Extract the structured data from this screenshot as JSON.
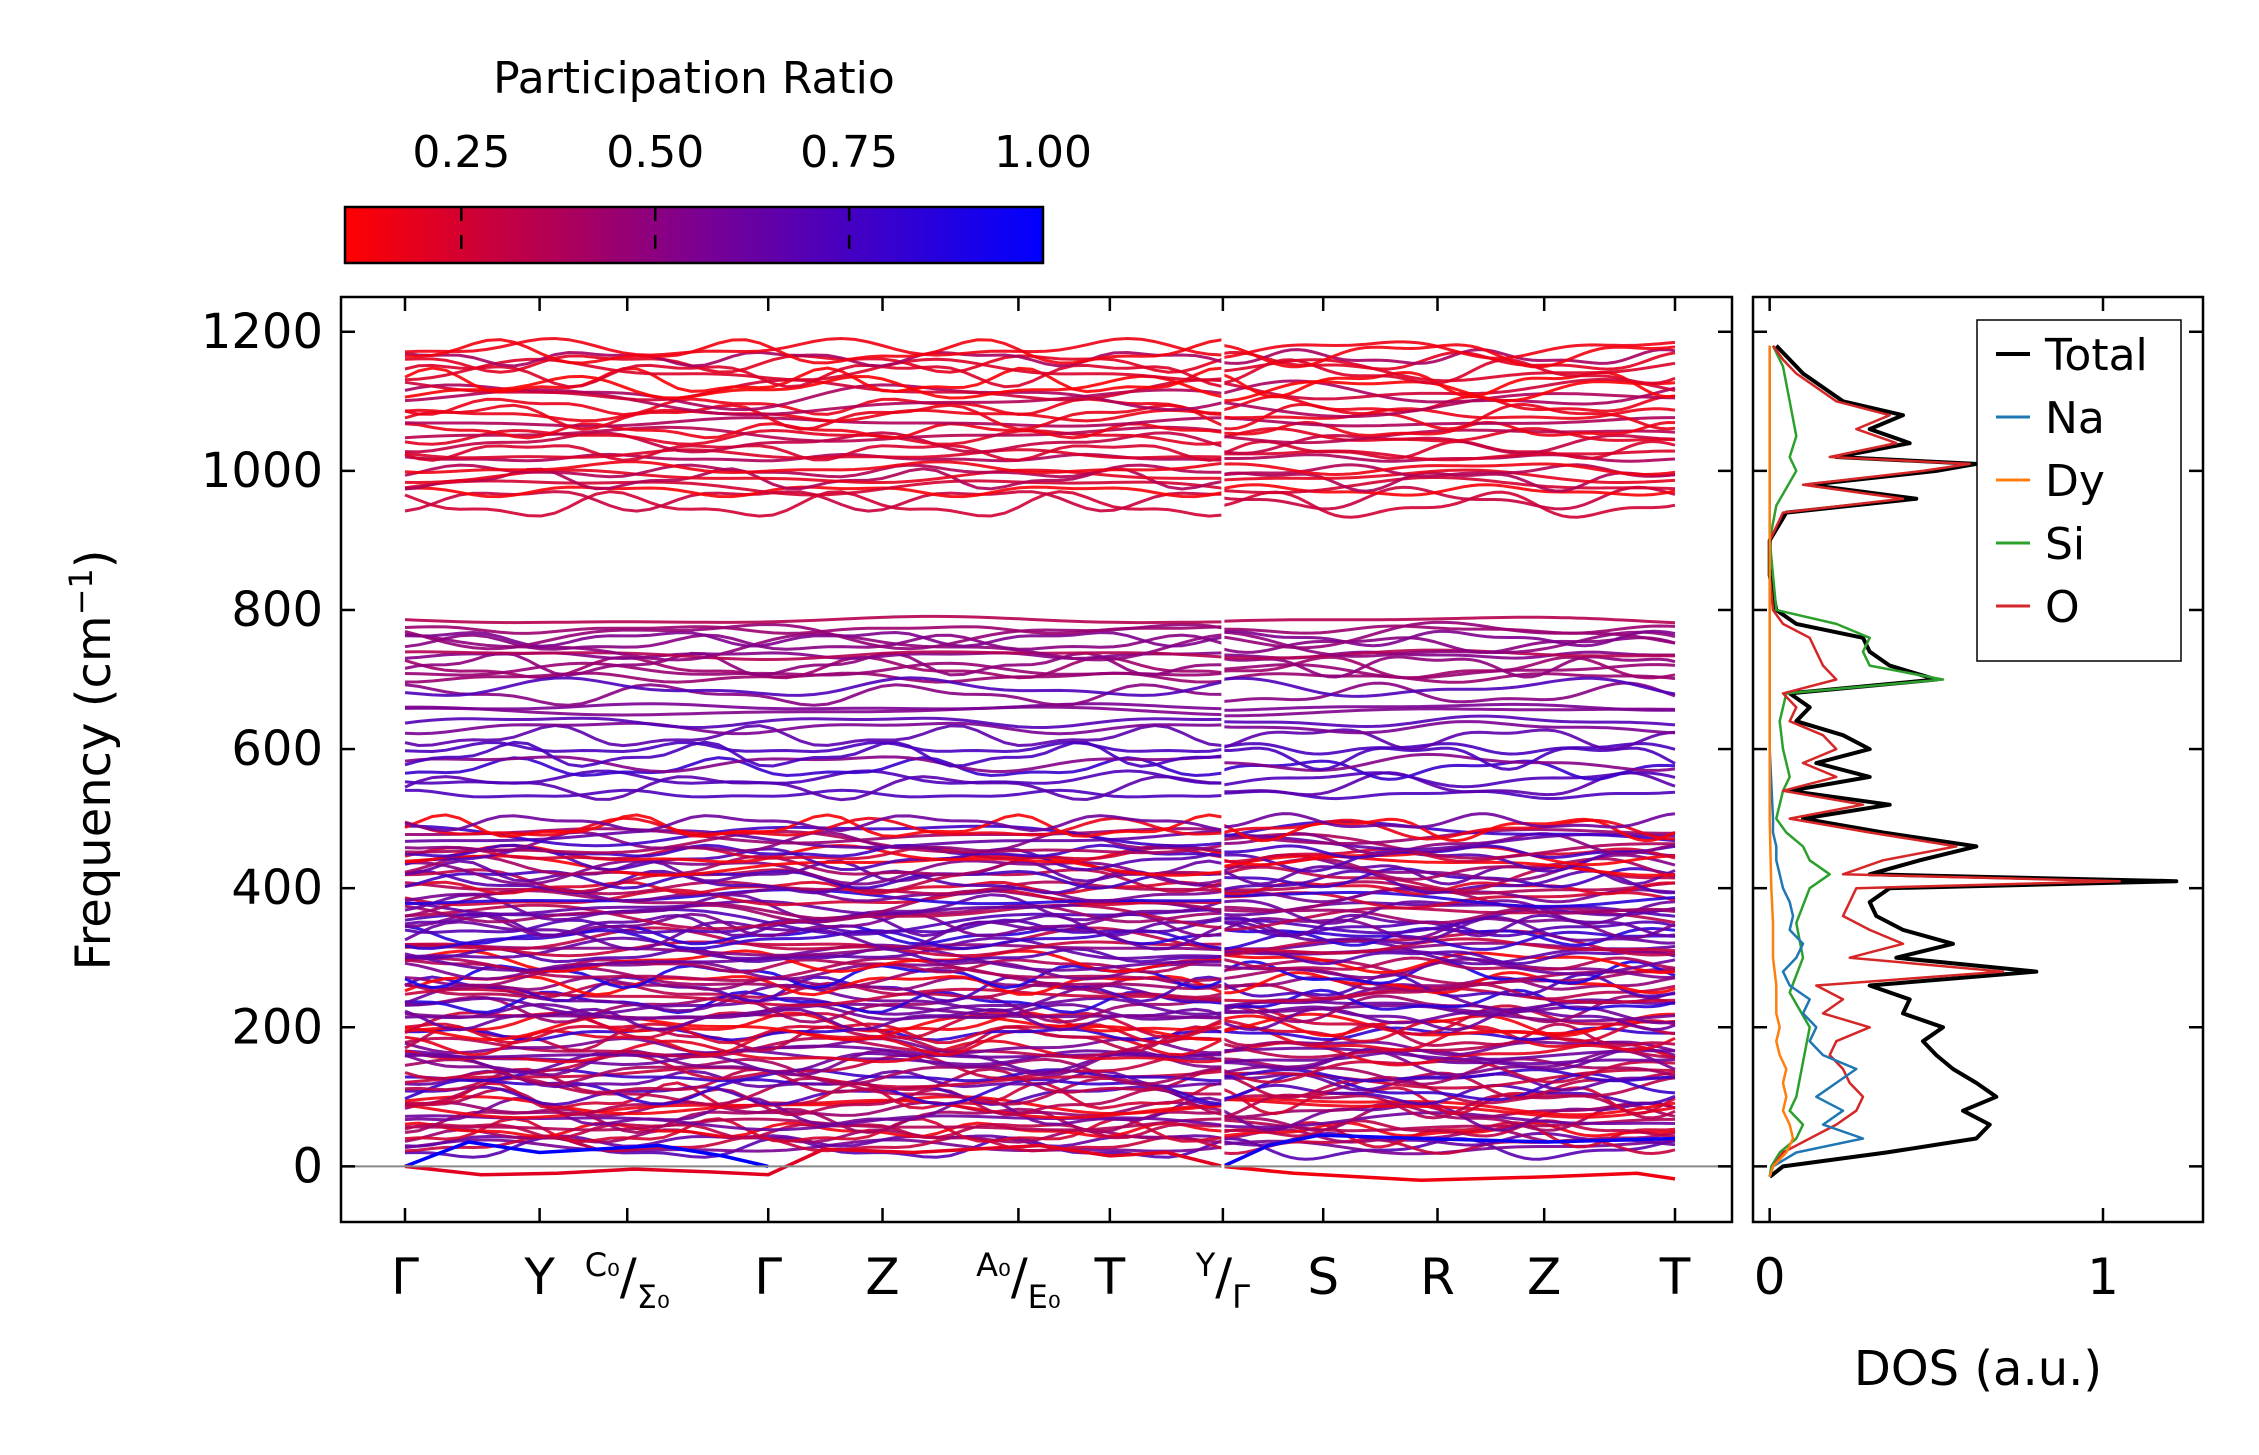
{
  "chart_data": [
    {
      "type": "line",
      "name": "phonon-dispersion",
      "ylabel": "Frequency (cm",
      "ylabel_sup": "−1",
      "ylabel_close": ")",
      "ylim": [
        -80,
        1250
      ],
      "ytick_values": [
        0,
        200,
        400,
        600,
        800,
        1000,
        1200
      ],
      "ytick_labels": [
        "0",
        "200",
        "400",
        "600",
        "800",
        "1000",
        "1200"
      ],
      "xlim": [
        0,
        1
      ],
      "kpath": [
        {
          "pos": 0.0,
          "main": "Γ",
          "sup": "",
          "sub": ""
        },
        {
          "pos": 0.106,
          "main": "Y",
          "sup": "",
          "sub": ""
        },
        {
          "pos": 0.175,
          "main": "/",
          "sup": "C0",
          "sub": "Σ0"
        },
        {
          "pos": 0.286,
          "main": "Γ",
          "sup": "",
          "sub": ""
        },
        {
          "pos": 0.376,
          "main": "Z",
          "sup": "",
          "sub": ""
        },
        {
          "pos": 0.483,
          "main": "/",
          "sup": "A0",
          "sub": "E0"
        },
        {
          "pos": 0.555,
          "main": "T",
          "sup": "",
          "sub": ""
        },
        {
          "pos": 0.644,
          "main": "/",
          "sup": "Y",
          "sub": "Γ"
        },
        {
          "pos": 0.723,
          "main": "S",
          "sup": "",
          "sub": ""
        },
        {
          "pos": 0.813,
          "main": "R",
          "sup": "",
          "sub": ""
        },
        {
          "pos": 0.897,
          "main": "Z",
          "sup": "",
          "sub": ""
        },
        {
          "pos": 1.0,
          "main": "T",
          "sup": "",
          "sub": ""
        }
      ],
      "segment_break": 0.644,
      "band_groups": [
        {
          "range": [
            950,
            1180
          ],
          "count": 30,
          "pr": [
            0.1,
            0.4
          ]
        },
        {
          "range": [
            700,
            785
          ],
          "count": 12,
          "pr": [
            0.35,
            0.55
          ]
        },
        {
          "range": [
            530,
            690
          ],
          "count": 14,
          "pr": [
            0.5,
            0.8
          ]
        },
        {
          "range": [
            20,
            495
          ],
          "count": 100,
          "pr": [
            0.1,
            0.9
          ]
        }
      ],
      "acoustic_branch_example": {
        "k": [
          0.0,
          0.03,
          0.06,
          0.1,
          0.14,
          0.18
        ],
        "freq": [
          0,
          -8,
          -12,
          -10,
          -6,
          -3
        ]
      }
    },
    {
      "type": "line",
      "name": "density-of-states",
      "xlabel": "DOS (a.u.)",
      "xlim": [
        -0.05,
        1.3
      ],
      "xtick_values": [
        0,
        1
      ],
      "xtick_labels": [
        "0",
        "1"
      ],
      "ylim": [
        -80,
        1250
      ],
      "series": [
        {
          "name": "Total",
          "color": "#000000",
          "freq": [
            -15,
            0,
            20,
            40,
            60,
            80,
            100,
            120,
            140,
            160,
            180,
            200,
            220,
            240,
            260,
            280,
            300,
            320,
            340,
            360,
            380,
            400,
            410,
            420,
            440,
            460,
            480,
            500,
            520,
            540,
            560,
            580,
            600,
            620,
            640,
            660,
            680,
            700,
            720,
            740,
            760,
            780,
            800,
            850,
            900,
            940,
            960,
            980,
            1000,
            1010,
            1020,
            1040,
            1060,
            1080,
            1100,
            1120,
            1140,
            1160,
            1180
          ],
          "value": [
            0.0,
            0.04,
            0.35,
            0.62,
            0.66,
            0.58,
            0.68,
            0.62,
            0.55,
            0.5,
            0.46,
            0.52,
            0.4,
            0.42,
            0.3,
            0.8,
            0.38,
            0.55,
            0.4,
            0.32,
            0.3,
            0.36,
            1.22,
            0.3,
            0.45,
            0.62,
            0.34,
            0.1,
            0.36,
            0.06,
            0.3,
            0.14,
            0.3,
            0.22,
            0.08,
            0.12,
            0.06,
            0.5,
            0.36,
            0.3,
            0.28,
            0.08,
            0.02,
            0.0,
            0.0,
            0.05,
            0.44,
            0.12,
            0.5,
            0.62,
            0.2,
            0.42,
            0.3,
            0.4,
            0.22,
            0.16,
            0.1,
            0.06,
            0.02
          ]
        },
        {
          "name": "Na",
          "color": "#1f77b4",
          "freq": [
            -15,
            0,
            20,
            40,
            60,
            80,
            100,
            120,
            140,
            160,
            180,
            200,
            220,
            240,
            260,
            280,
            300,
            320,
            340,
            360,
            380,
            400,
            420,
            440,
            460,
            480,
            500,
            600,
            700,
            1180
          ],
          "value": [
            0.0,
            0.01,
            0.08,
            0.28,
            0.16,
            0.22,
            0.14,
            0.2,
            0.26,
            0.16,
            0.12,
            0.14,
            0.1,
            0.12,
            0.06,
            0.04,
            0.08,
            0.1,
            0.06,
            0.07,
            0.06,
            0.04,
            0.03,
            0.02,
            0.02,
            0.01,
            0.01,
            0.0,
            0.0,
            0.0
          ]
        },
        {
          "name": "Dy",
          "color": "#ff7f0e",
          "freq": [
            -15,
            0,
            20,
            40,
            60,
            80,
            100,
            120,
            140,
            160,
            180,
            200,
            220,
            240,
            260,
            280,
            300,
            350,
            400,
            500,
            1180
          ],
          "value": [
            0.0,
            0.01,
            0.05,
            0.07,
            0.06,
            0.04,
            0.05,
            0.04,
            0.05,
            0.03,
            0.02,
            0.03,
            0.02,
            0.02,
            0.02,
            0.015,
            0.01,
            0.01,
            0.005,
            0.0,
            0.0
          ]
        },
        {
          "name": "Si",
          "color": "#2ca02c",
          "freq": [
            -15,
            0,
            20,
            40,
            60,
            80,
            100,
            150,
            200,
            250,
            300,
            350,
            400,
            420,
            440,
            460,
            480,
            500,
            540,
            560,
            600,
            640,
            680,
            700,
            720,
            740,
            760,
            780,
            800,
            900,
            950,
            1000,
            1020,
            1050,
            1100,
            1150,
            1180
          ],
          "value": [
            0.0,
            0.005,
            0.03,
            0.08,
            0.1,
            0.06,
            0.08,
            0.1,
            0.12,
            0.06,
            0.1,
            0.08,
            0.12,
            0.18,
            0.12,
            0.1,
            0.05,
            0.02,
            0.04,
            0.06,
            0.04,
            0.03,
            0.05,
            0.52,
            0.3,
            0.28,
            0.3,
            0.2,
            0.02,
            0.0,
            0.02,
            0.08,
            0.06,
            0.08,
            0.06,
            0.04,
            0.01
          ]
        },
        {
          "name": "O",
          "color": "#d62728",
          "freq": [
            -15,
            0,
            20,
            40,
            60,
            80,
            100,
            120,
            140,
            160,
            180,
            200,
            220,
            240,
            260,
            280,
            300,
            320,
            340,
            360,
            380,
            400,
            410,
            420,
            440,
            460,
            480,
            500,
            520,
            540,
            560,
            580,
            600,
            620,
            640,
            660,
            680,
            700,
            720,
            740,
            760,
            780,
            800,
            850,
            900,
            940,
            960,
            980,
            1000,
            1010,
            1020,
            1040,
            1060,
            1080,
            1100,
            1120,
            1140,
            1160,
            1180
          ],
          "value": [
            0.0,
            0.01,
            0.04,
            0.12,
            0.2,
            0.26,
            0.28,
            0.24,
            0.22,
            0.18,
            0.2,
            0.3,
            0.16,
            0.22,
            0.14,
            0.7,
            0.24,
            0.4,
            0.3,
            0.22,
            0.24,
            0.26,
            1.05,
            0.22,
            0.34,
            0.56,
            0.3,
            0.06,
            0.28,
            0.04,
            0.2,
            0.1,
            0.2,
            0.16,
            0.06,
            0.08,
            0.04,
            0.2,
            0.16,
            0.14,
            0.12,
            0.04,
            0.01,
            0.0,
            0.0,
            0.04,
            0.4,
            0.1,
            0.46,
            0.6,
            0.18,
            0.38,
            0.26,
            0.36,
            0.2,
            0.14,
            0.08,
            0.04,
            0.01
          ]
        }
      ],
      "legend_position": "top-right"
    }
  ],
  "colorbar": {
    "title": "Participation Ratio",
    "range": [
      0.1,
      1.0
    ],
    "tick_values": [
      0.25,
      0.5,
      0.75,
      1.0
    ],
    "tick_labels": [
      "0.25",
      "0.50",
      "0.75",
      "1.00"
    ],
    "color_low": "#ff0000",
    "color_mid": "#7d0090",
    "color_high": "#0000ff"
  }
}
